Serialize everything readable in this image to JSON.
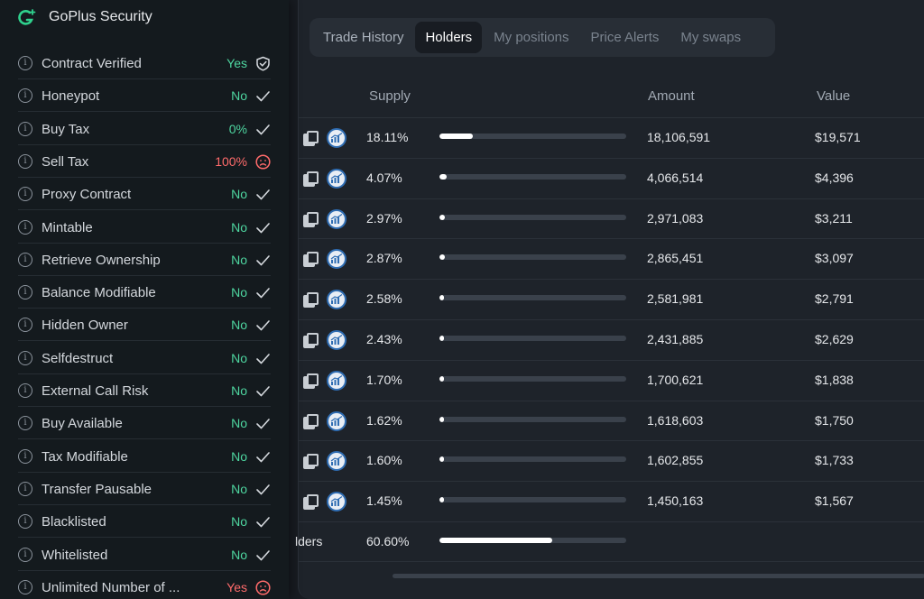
{
  "panel": {
    "title": "GoPlus Security",
    "items": [
      {
        "label": "Contract Verified",
        "value": "Yes",
        "status": "ok",
        "icon": "shield-check-icon"
      },
      {
        "label": "Honeypot",
        "value": "No",
        "status": "ok",
        "icon": "check-icon"
      },
      {
        "label": "Buy Tax",
        "value": "0%",
        "status": "ok",
        "icon": "check-icon"
      },
      {
        "label": "Sell Tax",
        "value": "100%",
        "status": "bad",
        "icon": "sad-face-icon"
      },
      {
        "label": "Proxy Contract",
        "value": "No",
        "status": "ok",
        "icon": "check-icon"
      },
      {
        "label": "Mintable",
        "value": "No",
        "status": "ok",
        "icon": "check-icon"
      },
      {
        "label": "Retrieve Ownership",
        "value": "No",
        "status": "ok",
        "icon": "check-icon"
      },
      {
        "label": "Balance Modifiable",
        "value": "No",
        "status": "ok",
        "icon": "check-icon"
      },
      {
        "label": "Hidden Owner",
        "value": "No",
        "status": "ok",
        "icon": "check-icon"
      },
      {
        "label": "Selfdestruct",
        "value": "No",
        "status": "ok",
        "icon": "check-icon"
      },
      {
        "label": "External Call Risk",
        "value": "No",
        "status": "ok",
        "icon": "check-icon"
      },
      {
        "label": "Buy Available",
        "value": "No",
        "status": "ok",
        "icon": "check-icon"
      },
      {
        "label": "Tax Modifiable",
        "value": "No",
        "status": "ok",
        "icon": "check-icon"
      },
      {
        "label": "Transfer Pausable",
        "value": "No",
        "status": "ok",
        "icon": "check-icon"
      },
      {
        "label": "Blacklisted",
        "value": "No",
        "status": "ok",
        "icon": "check-icon"
      },
      {
        "label": "Whitelisted",
        "value": "No",
        "status": "ok",
        "icon": "check-icon"
      },
      {
        "label": "Unlimited Number of ...",
        "value": "Yes",
        "status": "bad",
        "icon": "sad-face-icon"
      }
    ]
  },
  "tabs": [
    {
      "label": "Trade History"
    },
    {
      "label": "Holders"
    },
    {
      "label": "My positions"
    },
    {
      "label": "Price Alerts"
    },
    {
      "label": "My swaps"
    }
  ],
  "active_tab": "Holders",
  "table": {
    "headers": {
      "supply": "Supply",
      "amount": "Amount",
      "value": "Value"
    },
    "rows": [
      {
        "supply": "18.11%",
        "share": 0.1811,
        "amount": "18,106,591",
        "value": "$19,571"
      },
      {
        "supply": "4.07%",
        "share": 0.0407,
        "amount": "4,066,514",
        "value": "$4,396"
      },
      {
        "supply": "2.97%",
        "share": 0.0297,
        "amount": "2,971,083",
        "value": "$3,211"
      },
      {
        "supply": "2.87%",
        "share": 0.0287,
        "amount": "2,865,451",
        "value": "$3,097"
      },
      {
        "supply": "2.58%",
        "share": 0.0258,
        "amount": "2,581,981",
        "value": "$2,791"
      },
      {
        "supply": "2.43%",
        "share": 0.0243,
        "amount": "2,431,885",
        "value": "$2,629"
      },
      {
        "supply": "1.70%",
        "share": 0.017,
        "amount": "1,700,621",
        "value": "$1,838"
      },
      {
        "supply": "1.62%",
        "share": 0.0162,
        "amount": "1,618,603",
        "value": "$1,750"
      },
      {
        "supply": "1.60%",
        "share": 0.016,
        "amount": "1,602,855",
        "value": "$1,733"
      },
      {
        "supply": "1.45%",
        "share": 0.0145,
        "amount": "1,450,163",
        "value": "$1,567"
      }
    ],
    "total": {
      "label": "lders",
      "supply": "60.60%",
      "share": 0.606
    }
  },
  "colors": {
    "ok": "#4ed6a0",
    "bad": "#ff6b6b",
    "accent": "#2fd18d"
  }
}
